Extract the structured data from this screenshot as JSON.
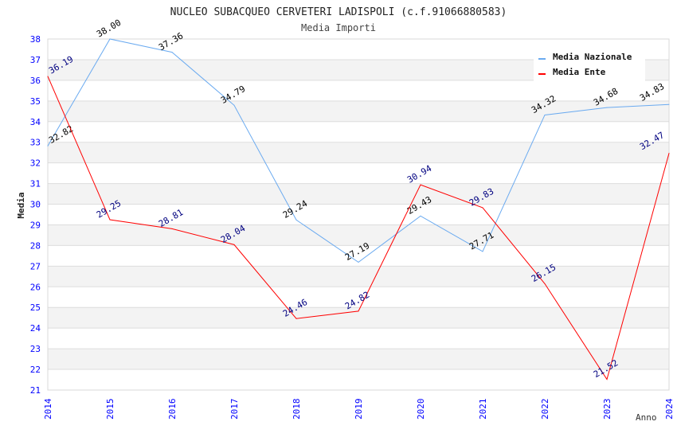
{
  "chart_data": {
    "type": "line",
    "title": "NUCLEO SUBACQUEO CERVETERI LADISPOLI (c.f.91066880583)",
    "subtitle": "Media Importi",
    "xlabel": "Anno",
    "ylabel": "Media",
    "ylim": [
      21,
      38
    ],
    "yticks": [
      "21",
      "22",
      "23",
      "24",
      "25",
      "26",
      "27",
      "28",
      "29",
      "30",
      "31",
      "32",
      "33",
      "34",
      "35",
      "36",
      "37",
      "38"
    ],
    "categories": [
      "2014",
      "2015",
      "2016",
      "2017",
      "2018",
      "2019",
      "2020",
      "2021",
      "2022",
      "2023",
      "2024"
    ],
    "legend_position": "top-right",
    "grid": true,
    "series": [
      {
        "name": "Media Nazionale",
        "color": "#6aaaf0",
        "label_color": "#000000",
        "values": [
          32.82,
          38.0,
          37.36,
          34.79,
          29.24,
          27.19,
          29.43,
          27.71,
          34.32,
          34.68,
          34.83
        ]
      },
      {
        "name": "Media Ente",
        "color": "#ff0000",
        "label_color": "#000080",
        "values": [
          36.19,
          29.25,
          28.81,
          28.04,
          24.46,
          24.82,
          30.94,
          29.83,
          26.15,
          21.52,
          32.47
        ]
      }
    ]
  }
}
